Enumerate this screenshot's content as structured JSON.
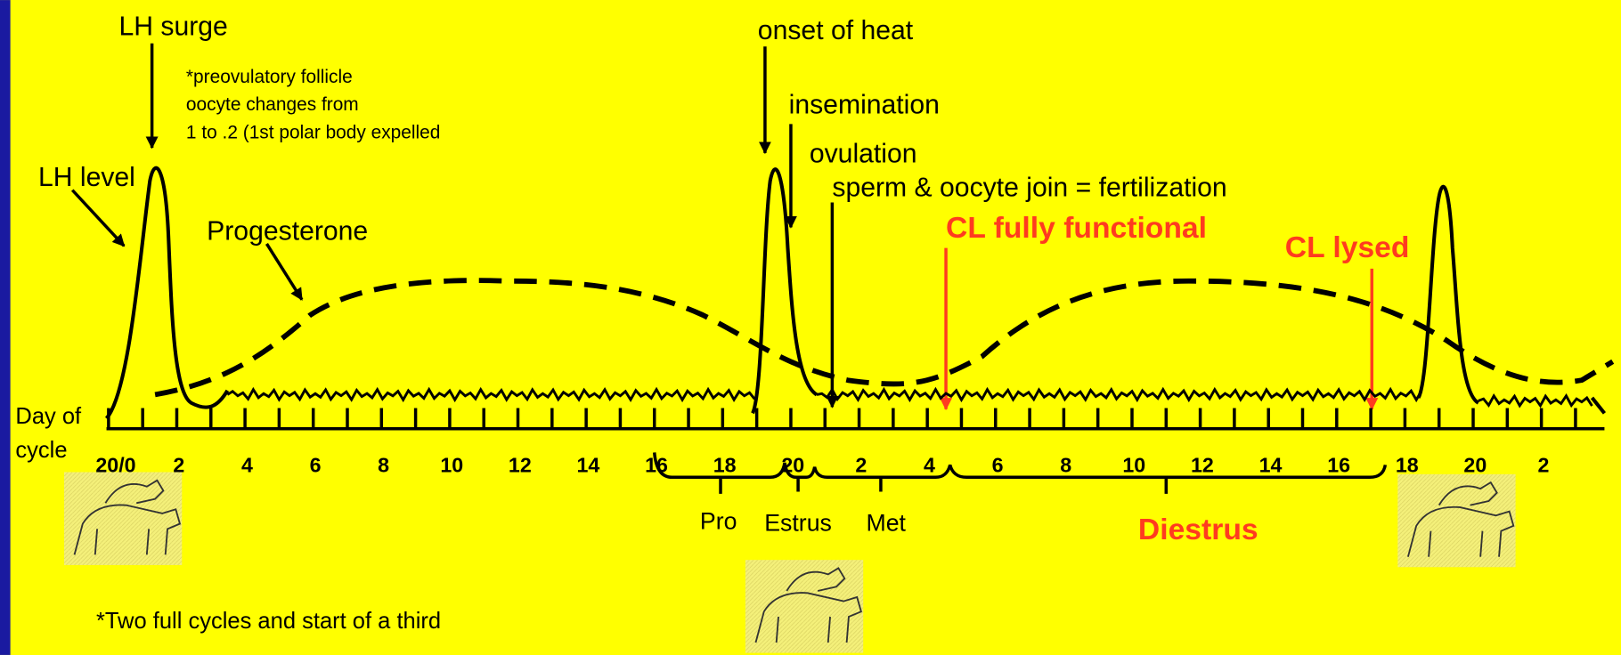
{
  "annotations": {
    "lh_surge": "LH surge",
    "lh_level": "LH level",
    "progesterone": "Progesterone",
    "onset_of_heat": "onset of heat",
    "insemination": "insemination",
    "ovulation": "ovulation",
    "fertilization": "sperm & oocyte join = fertilization",
    "cl_functional": "CL fully functional",
    "cl_lysed": "CL lysed"
  },
  "note": [
    "*preovulatory follicle",
    "oocyte changes from",
    "1 to .2 (1st polar body expelled"
  ],
  "axis": {
    "label": [
      "Day of",
      "cycle"
    ],
    "ticks": [
      "20/0",
      "2",
      "4",
      "6",
      "8",
      "10",
      "12",
      "14",
      "16",
      "18",
      "20",
      "2",
      "4",
      "6",
      "8",
      "10",
      "12",
      "14",
      "16",
      "18",
      "20",
      "2"
    ]
  },
  "phases": [
    "Pro",
    "Estrus",
    "Met",
    "Diestrus"
  ],
  "footnote": "*Two full cycles and start of a third"
}
